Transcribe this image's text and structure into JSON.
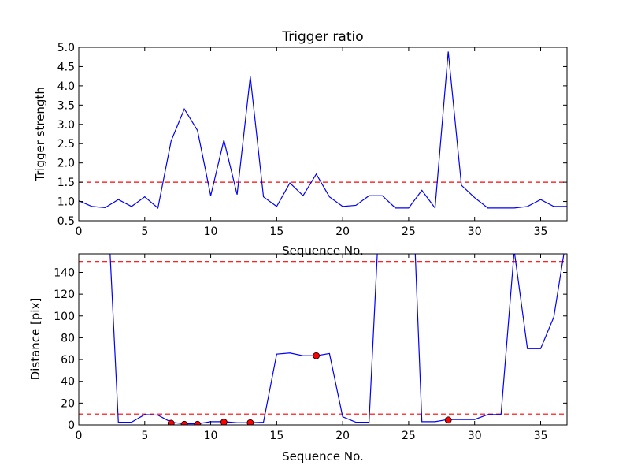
{
  "chart_data": [
    {
      "type": "line",
      "title": "Trigger ratio",
      "xlabel": "Sequence No.",
      "ylabel": "Trigger strength",
      "xlim": [
        0,
        37
      ],
      "ylim": [
        0.5,
        5.0
      ],
      "xticks": [
        "0",
        "5",
        "10",
        "15",
        "20",
        "25",
        "30",
        "35"
      ],
      "yticks": [
        "0.5",
        "1.0",
        "1.5",
        "2.0",
        "2.5",
        "3.0",
        "3.5",
        "4.0",
        "4.5",
        "5.0"
      ],
      "line_color": "#0000ff",
      "threshold": 1.5,
      "threshold_color": "#ff0000",
      "x": [
        0,
        1,
        2,
        3,
        4,
        5,
        6,
        7,
        8,
        9,
        10,
        11,
        12,
        13,
        14,
        15,
        16,
        17,
        18,
        19,
        20,
        21,
        22,
        23,
        24,
        25,
        26,
        27,
        28,
        29,
        30,
        31,
        32,
        33,
        34,
        35,
        36,
        37
      ],
      "y": [
        1.02,
        0.87,
        0.84,
        1.05,
        0.87,
        1.12,
        0.83,
        2.57,
        3.4,
        2.84,
        1.15,
        2.59,
        1.18,
        4.24,
        1.12,
        0.87,
        1.48,
        1.15,
        1.71,
        1.12,
        0.87,
        0.9,
        1.15,
        1.15,
        0.83,
        0.83,
        1.29,
        0.83,
        4.89,
        1.42,
        1.1,
        0.83,
        0.83,
        0.83,
        0.87,
        1.05,
        0.87,
        0.87
      ]
    },
    {
      "type": "line",
      "xlabel": "Sequence No.",
      "ylabel": "Distance [pix]",
      "xlim": [
        0,
        37
      ],
      "ylim": [
        0,
        157
      ],
      "xticks": [
        "0",
        "5",
        "10",
        "15",
        "20",
        "25",
        "30",
        "35"
      ],
      "yticks": [
        "0",
        "20",
        "40",
        "60",
        "80",
        "100",
        "120",
        "140"
      ],
      "line_color": "#0000ff",
      "thresholds": [
        10,
        150
      ],
      "threshold_color": "#ff0000",
      "marker_color": "#ff0000",
      "x": [
        2,
        3,
        4,
        5,
        6,
        7,
        8,
        9,
        10,
        11,
        12,
        13,
        14,
        15,
        16,
        17,
        18,
        19,
        20,
        21,
        22,
        23,
        25.2,
        26,
        27,
        28,
        29,
        30,
        31,
        32,
        33,
        34,
        35,
        36,
        36.8
      ],
      "y": [
        250,
        2.5,
        2.5,
        9.5,
        9,
        2.5,
        1,
        1,
        3,
        3,
        2,
        2,
        2.5,
        65,
        66,
        63.5,
        63.5,
        65.5,
        7.5,
        2.5,
        2.5,
        250,
        250,
        3,
        3,
        5,
        5,
        5,
        9.5,
        9.5,
        160,
        70,
        70,
        99,
        160
      ],
      "markers": {
        "x": [
          7,
          8,
          9,
          11,
          13,
          18,
          28
        ],
        "y": [
          1.5,
          0.5,
          0.5,
          2.5,
          2,
          63.5,
          4.5
        ]
      }
    }
  ]
}
